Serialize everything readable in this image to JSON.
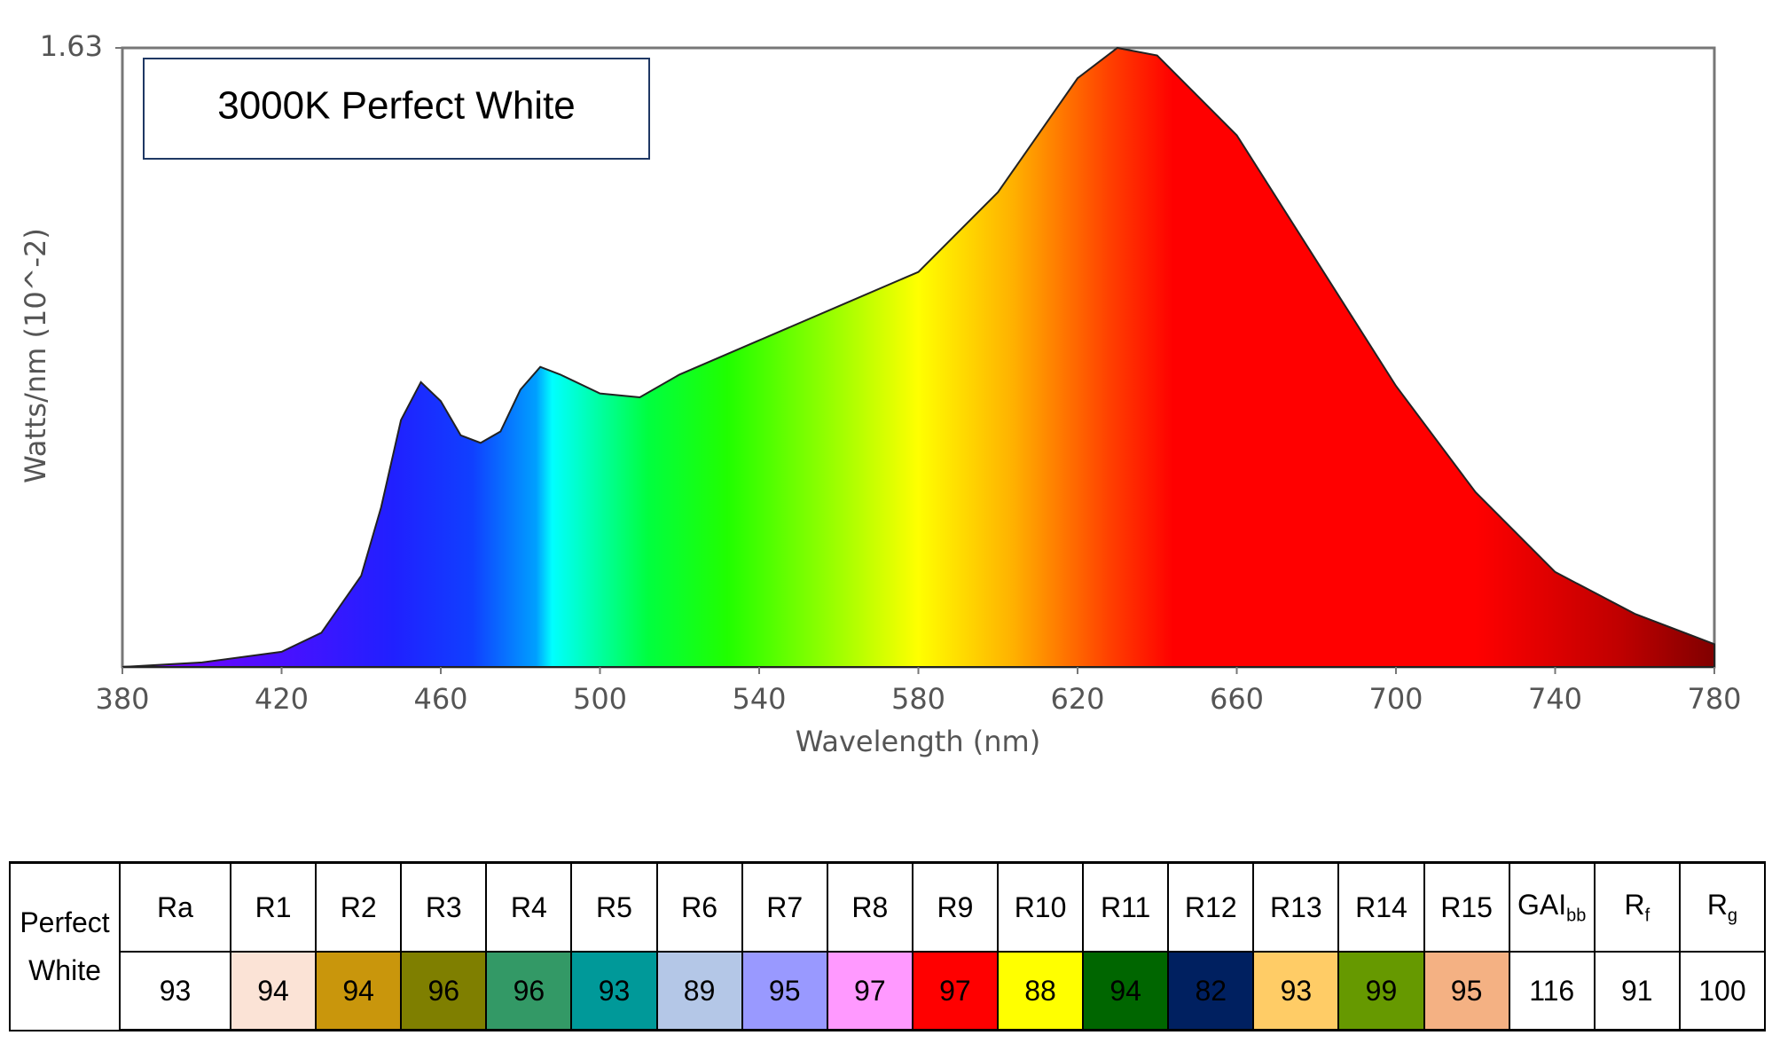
{
  "chart_data": {
    "type": "area",
    "title": "3000K Perfect White",
    "x_label": "Wavelength (nm)",
    "y_label": "Watts/nm (10^-2)",
    "x": [
      380,
      400,
      420,
      430,
      440,
      445,
      450,
      455,
      460,
      465,
      470,
      475,
      480,
      485,
      490,
      500,
      510,
      520,
      540,
      560,
      580,
      600,
      620,
      630,
      640,
      660,
      680,
      700,
      720,
      740,
      760,
      775,
      780
    ],
    "values": [
      0,
      0.012,
      0.04,
      0.09,
      0.24,
      0.42,
      0.65,
      0.75,
      0.7,
      0.61,
      0.59,
      0.62,
      0.73,
      0.79,
      0.77,
      0.72,
      0.71,
      0.77,
      0.86,
      0.95,
      1.04,
      1.25,
      1.55,
      1.63,
      1.61,
      1.4,
      1.07,
      0.74,
      0.46,
      0.25,
      0.14,
      0.08,
      0.06
    ],
    "xlim": [
      380,
      780
    ],
    "xticks": [
      380,
      420,
      460,
      500,
      540,
      580,
      620,
      660,
      700,
      740,
      780
    ],
    "ylim": [
      0,
      1.63
    ],
    "yticks": [
      1.63
    ]
  },
  "table": {
    "row_label": "Perfect White",
    "headers": [
      "Ra",
      "R1",
      "R2",
      "R3",
      "R4",
      "R5",
      "R6",
      "R7",
      "R8",
      "R9",
      "R10",
      "R11",
      "R12",
      "R13",
      "R14",
      "R15",
      {
        "main": "GAI",
        "sub": "bb"
      },
      {
        "main": "R",
        "sub": "f"
      },
      {
        "main": "R",
        "sub": "g"
      }
    ],
    "values": [
      93,
      94,
      94,
      96,
      96,
      93,
      89,
      95,
      97,
      97,
      88,
      94,
      82,
      93,
      99,
      95,
      116,
      91,
      100
    ],
    "colors": [
      "#ffffff",
      "#fbe3d6",
      "#c9960c",
      "#7f7f00",
      "#339966",
      "#009999",
      "#b4c7e7",
      "#9999ff",
      "#ff99ff",
      "#ff0000",
      "#ffff00",
      "#006600",
      "#002060",
      "#ffcc66",
      "#669900",
      "#f4b183",
      "#ffffff",
      "#ffffff",
      "#ffffff"
    ]
  }
}
